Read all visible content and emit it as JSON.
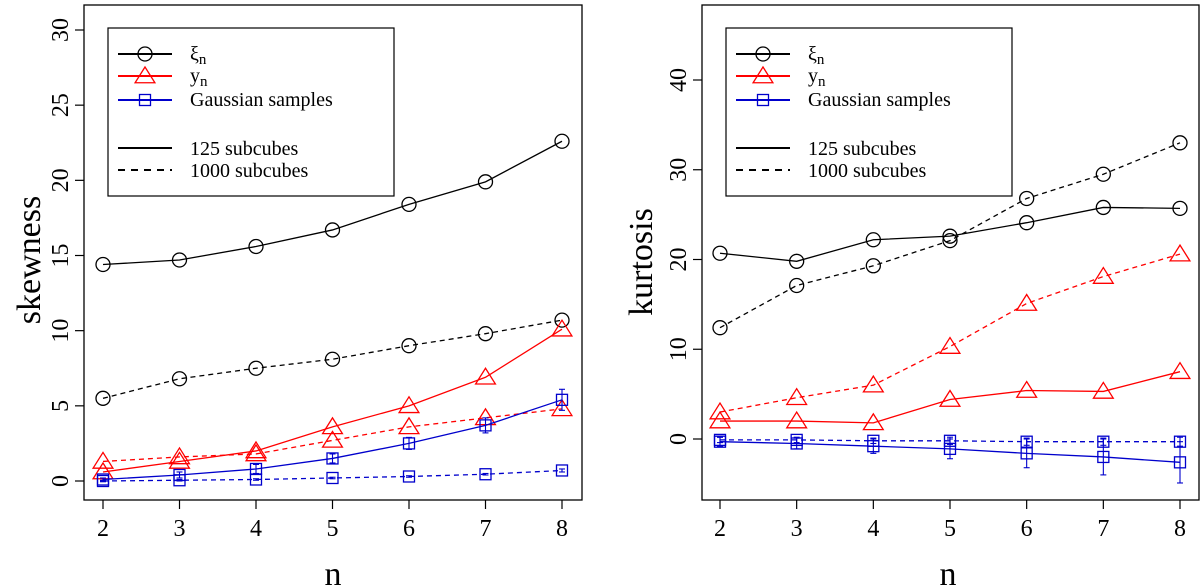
{
  "chart_data": [
    {
      "type": "line",
      "title": "",
      "xlabel": "n",
      "ylabel": "skewness",
      "x": [
        2,
        3,
        4,
        5,
        6,
        7,
        8
      ],
      "xlim": [
        2,
        8
      ],
      "ylim": [
        0,
        30
      ],
      "yticks": [
        0,
        5,
        10,
        15,
        20,
        25,
        30
      ],
      "xticks": [
        2,
        3,
        4,
        5,
        6,
        7,
        8
      ],
      "series": [
        {
          "name": "ξn",
          "subcubes": "125 subcubes",
          "dash": "solid",
          "color": "#000000",
          "marker": "circle",
          "values": [
            14.4,
            14.7,
            15.6,
            16.7,
            18.4,
            19.9,
            22.6
          ]
        },
        {
          "name": "ξn",
          "subcubes": "1000 subcubes",
          "dash": "dashed",
          "color": "#000000",
          "marker": "circle",
          "values": [
            5.5,
            6.8,
            7.5,
            8.1,
            9.0,
            9.8,
            10.7
          ]
        },
        {
          "name": "yn",
          "subcubes": "125 subcubes",
          "dash": "solid",
          "color": "#ff0000",
          "marker": "triangle",
          "values": [
            0.6,
            1.3,
            2.0,
            3.6,
            5.0,
            6.9,
            10.1
          ]
        },
        {
          "name": "yn",
          "subcubes": "1000 subcubes",
          "dash": "dashed",
          "color": "#ff0000",
          "marker": "triangle",
          "values": [
            1.3,
            1.6,
            1.8,
            2.7,
            3.6,
            4.2,
            4.8
          ]
        },
        {
          "name": "Gaussian samples",
          "subcubes": "125 subcubes",
          "dash": "solid",
          "color": "#0000cc",
          "marker": "square",
          "values": [
            0.1,
            0.4,
            0.8,
            1.5,
            2.5,
            3.7,
            5.4
          ],
          "errors": [
            0.1,
            0.2,
            0.3,
            0.3,
            0.4,
            0.5,
            0.7
          ]
        },
        {
          "name": "Gaussian samples",
          "subcubes": "1000 subcubes",
          "dash": "dashed",
          "color": "#0000cc",
          "marker": "square",
          "values": [
            0.0,
            0.05,
            0.1,
            0.2,
            0.3,
            0.45,
            0.7
          ],
          "errors": [
            0.05,
            0.05,
            0.05,
            0.05,
            0.05,
            0.05,
            0.1
          ]
        }
      ],
      "legend": {
        "entries": [
          {
            "label": "ξ",
            "sub": "n",
            "color": "#000000",
            "marker": "circle"
          },
          {
            "label": "y",
            "sub": "n",
            "color": "#ff0000",
            "marker": "triangle"
          },
          {
            "label": "Gaussian samples",
            "sub": "",
            "color": "#0000cc",
            "marker": "square"
          }
        ],
        "styles": [
          {
            "label": "125 subcubes",
            "dash": "solid"
          },
          {
            "label": "1000 subcubes",
            "dash": "dashed"
          }
        ],
        "position": "top-left"
      }
    },
    {
      "type": "line",
      "title": "",
      "xlabel": "n",
      "ylabel": "kurtosis",
      "x": [
        2,
        3,
        4,
        5,
        6,
        7,
        8
      ],
      "xlim": [
        2,
        8
      ],
      "ylim": [
        -5,
        48
      ],
      "yticks": [
        0,
        10,
        20,
        30,
        40
      ],
      "xticks": [
        2,
        3,
        4,
        5,
        6,
        7,
        8
      ],
      "series": [
        {
          "name": "ξn",
          "subcubes": "125 subcubes",
          "dash": "solid",
          "color": "#000000",
          "marker": "circle",
          "values": [
            20.7,
            19.8,
            22.2,
            22.6,
            24.1,
            25.8,
            25.7
          ]
        },
        {
          "name": "ξn",
          "subcubes": "1000 subcubes",
          "dash": "dashed",
          "color": "#000000",
          "marker": "circle",
          "values": [
            12.4,
            17.1,
            19.3,
            22.1,
            26.8,
            29.5,
            33.0
          ]
        },
        {
          "name": "yn",
          "subcubes": "125 subcubes",
          "dash": "solid",
          "color": "#ff0000",
          "marker": "triangle",
          "values": [
            2.0,
            2.0,
            1.8,
            4.4,
            5.4,
            5.3,
            7.5
          ]
        },
        {
          "name": "yn",
          "subcubes": "1000 subcubes",
          "dash": "dashed",
          "color": "#ff0000",
          "marker": "triangle",
          "values": [
            3.0,
            4.6,
            6.0,
            10.3,
            15.1,
            18.1,
            20.6
          ]
        },
        {
          "name": "Gaussian samples",
          "subcubes": "125 subcubes",
          "dash": "solid",
          "color": "#0000cc",
          "marker": "square",
          "values": [
            -0.3,
            -0.5,
            -0.8,
            -1.1,
            -1.6,
            -2.0,
            -2.6
          ],
          "errors": [
            0.5,
            0.6,
            0.8,
            1.1,
            1.6,
            2.0,
            2.3
          ]
        },
        {
          "name": "Gaussian samples",
          "subcubes": "1000 subcubes",
          "dash": "dashed",
          "color": "#0000cc",
          "marker": "square",
          "values": [
            -0.1,
            -0.1,
            -0.2,
            -0.2,
            -0.3,
            -0.3,
            -0.3
          ],
          "errors": [
            0.3,
            0.3,
            0.3,
            0.4,
            0.4,
            0.4,
            0.5
          ]
        }
      ],
      "legend": {
        "entries": [
          {
            "label": "ξ",
            "sub": "n",
            "color": "#000000",
            "marker": "circle"
          },
          {
            "label": "y",
            "sub": "n",
            "color": "#ff0000",
            "marker": "triangle"
          },
          {
            "label": "Gaussian samples",
            "sub": "",
            "color": "#0000cc",
            "marker": "square"
          }
        ],
        "styles": [
          {
            "label": "125 subcubes",
            "dash": "solid"
          },
          {
            "label": "1000 subcubes",
            "dash": "dashed"
          }
        ],
        "position": "top-left"
      }
    }
  ]
}
